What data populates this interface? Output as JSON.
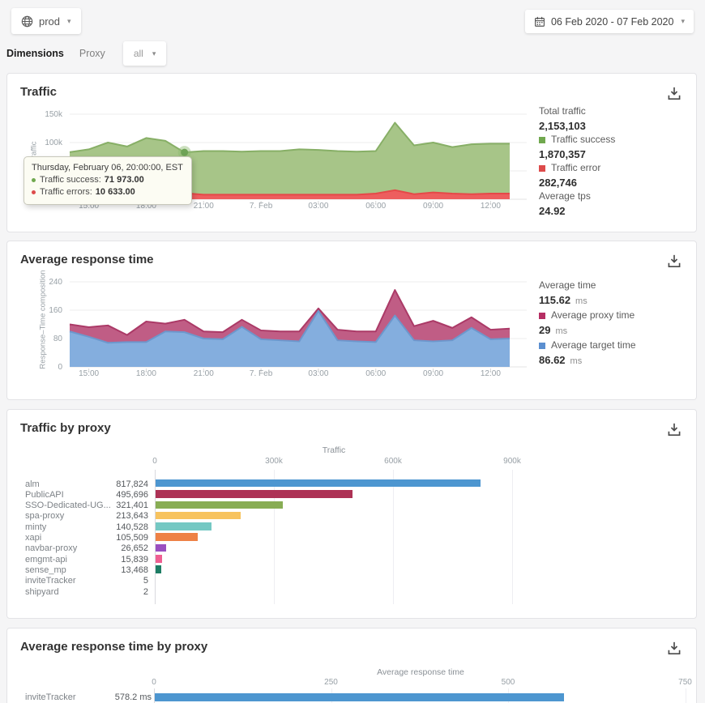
{
  "topbar": {
    "environment": "prod",
    "date_range": "06 Feb 2020 - 07 Feb 2020"
  },
  "filters": {
    "dimensions_label": "Dimensions",
    "dimension_name": "Proxy",
    "dimension_value": "all"
  },
  "traffic_card": {
    "title": "Traffic",
    "stats": [
      {
        "label": "Total traffic",
        "value": "2,153,103"
      },
      {
        "label": "Traffic success",
        "value": "1,870,357",
        "color": "#70a84e"
      },
      {
        "label": "Traffic error",
        "value": "282,746",
        "color": "#dd4b4b"
      },
      {
        "label": "Average tps",
        "value": "24.92"
      }
    ],
    "tooltip": {
      "title": "Thursday, February 06, 20:00:00, EST",
      "rows": [
        {
          "label": "Traffic success:",
          "value": "71 973.00",
          "color": "#70a84e"
        },
        {
          "label": "Traffic errors:",
          "value": "10 633.00",
          "color": "#dd4b4b"
        }
      ]
    }
  },
  "response_card": {
    "title": "Average response time",
    "stats": [
      {
        "label": "Average time",
        "value": "115.62",
        "unit": "ms"
      },
      {
        "label": "Average proxy time",
        "value": "29",
        "unit": "ms",
        "color": "#b52e63"
      },
      {
        "label": "Average target time",
        "value": "86.62",
        "unit": "ms",
        "color": "#5b8fd0"
      }
    ]
  },
  "traffic_by_proxy_card": {
    "title": "Traffic by proxy"
  },
  "response_by_proxy_card": {
    "title": "Average response time by proxy"
  },
  "chart_data": [
    {
      "id": "traffic",
      "type": "area",
      "title": "Traffic",
      "ylabel": "Traffic",
      "ylim": [
        0,
        150000
      ],
      "grid": true,
      "y_ticks": [
        {
          "value": 0,
          "label": "0"
        },
        {
          "value": 50000,
          "label": "50k"
        },
        {
          "value": 100000,
          "label": "100k"
        },
        {
          "value": 150000,
          "label": "150k"
        }
      ],
      "x_ticks": [
        {
          "index": 1,
          "label": "15:00"
        },
        {
          "index": 4,
          "label": "18:00"
        },
        {
          "index": 7,
          "label": "21:00"
        },
        {
          "index": 10,
          "label": "7. Feb"
        },
        {
          "index": 13,
          "label": "03:00"
        },
        {
          "index": 16,
          "label": "06:00"
        },
        {
          "index": 19,
          "label": "09:00"
        },
        {
          "index": 22,
          "label": "12:00"
        }
      ],
      "marker_index": 6,
      "series": [
        {
          "name": "Traffic success (stacked total)",
          "fill": "#a7c588",
          "line": "#87af66",
          "values": [
            83000,
            88000,
            100000,
            93000,
            108000,
            103000,
            82606,
            85000,
            85000,
            84000,
            85000,
            85000,
            88000,
            87000,
            85000,
            84000,
            85000,
            135000,
            95000,
            100000,
            92000,
            97000,
            98000,
            98000
          ]
        },
        {
          "name": "Traffic errors",
          "fill": "#ed5e5e",
          "line": "#e54848",
          "values": [
            9000,
            9000,
            10000,
            9000,
            10000,
            10000,
            10633,
            8000,
            8000,
            8000,
            8000,
            8000,
            8000,
            8000,
            8000,
            8000,
            10000,
            16000,
            9000,
            12000,
            10000,
            9000,
            10000,
            10000
          ]
        }
      ]
    },
    {
      "id": "response",
      "type": "area",
      "title": "Average response time",
      "ylabel": "Response–Time composition",
      "ylim": [
        0,
        240
      ],
      "grid": true,
      "y_ticks": [
        {
          "value": 0,
          "label": "0"
        },
        {
          "value": 80,
          "label": "80"
        },
        {
          "value": 160,
          "label": "160"
        },
        {
          "value": 240,
          "label": "240"
        }
      ],
      "x_ticks": [
        {
          "index": 1,
          "label": "15:00"
        },
        {
          "index": 4,
          "label": "18:00"
        },
        {
          "index": 7,
          "label": "21:00"
        },
        {
          "index": 10,
          "label": "7. Feb"
        },
        {
          "index": 13,
          "label": "03:00"
        },
        {
          "index": 16,
          "label": "06:00"
        },
        {
          "index": 19,
          "label": "09:00"
        },
        {
          "index": 22,
          "label": "12:00"
        }
      ],
      "series": [
        {
          "name": "Average response time total (proxy+target)",
          "fill": "#c05d85",
          "line": "#ab3a67",
          "values": [
            120,
            112,
            117,
            90,
            128,
            122,
            133,
            100,
            98,
            133,
            103,
            100,
            100,
            165,
            105,
            100,
            100,
            217,
            115,
            130,
            110,
            140,
            105,
            108
          ]
        },
        {
          "name": "Average target time",
          "fill": "#84aede",
          "line": "#6d97cc",
          "values": [
            100,
            85,
            68,
            70,
            70,
            100,
            98,
            80,
            78,
            113,
            78,
            75,
            72,
            158,
            75,
            72,
            70,
            145,
            75,
            72,
            75,
            110,
            78,
            80
          ]
        }
      ]
    },
    {
      "id": "traffic_by_proxy",
      "type": "bar",
      "orientation": "horizontal",
      "axis_title": "Traffic",
      "xlim": [
        0,
        900000
      ],
      "tick_step": 300000,
      "x_ticks": [
        "0",
        "300k",
        "600k",
        "900k"
      ],
      "rows": [
        {
          "label": "alm",
          "value": 817824,
          "value_label": "817,824",
          "color": "#4d96d0"
        },
        {
          "label": "PublicAPI",
          "value": 495696,
          "value_label": "495,696",
          "color": "#ad3255"
        },
        {
          "label": "SSO-Dedicated-UG...",
          "value": 321401,
          "value_label": "321,401",
          "color": "#88ad54"
        },
        {
          "label": "spa-proxy",
          "value": 213643,
          "value_label": "213,643",
          "color": "#f7c35f"
        },
        {
          "label": "minty",
          "value": 140528,
          "value_label": "140,528",
          "color": "#74c8c3"
        },
        {
          "label": "xapi",
          "value": 105509,
          "value_label": "105,509",
          "color": "#ee8145"
        },
        {
          "label": "navbar-proxy",
          "value": 26652,
          "value_label": "26,652",
          "color": "#9a4fc0"
        },
        {
          "label": "emgmt-api",
          "value": 15839,
          "value_label": "15,839",
          "color": "#ef5f92"
        },
        {
          "label": "sense_mp",
          "value": 13468,
          "value_label": "13,468",
          "color": "#1d7d64"
        },
        {
          "label": "inviteTracker",
          "value": 5,
          "value_label": "5",
          "color": "#4d96d0"
        },
        {
          "label": "shipyard",
          "value": 2,
          "value_label": "2",
          "color": "#4d96d0"
        }
      ]
    },
    {
      "id": "response_by_proxy",
      "type": "bar",
      "orientation": "horizontal",
      "axis_title": "Average response time",
      "xlim": [
        0,
        750
      ],
      "tick_step": 250,
      "x_ticks": [
        "0",
        "250",
        "500",
        "750"
      ],
      "rows": [
        {
          "label": "inviteTracker",
          "value": 578.2,
          "value_label": "578.2 ms",
          "color": "#4d96d0"
        }
      ]
    }
  ]
}
